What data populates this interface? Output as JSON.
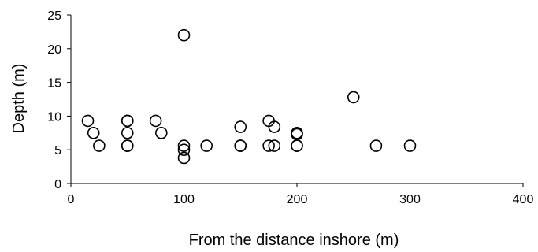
{
  "chart_data": {
    "type": "scatter",
    "title": "",
    "xlabel": "From the distance inshore (m)",
    "ylabel": "Depth (m)",
    "xlim": [
      0,
      400
    ],
    "ylim": [
      0,
      25
    ],
    "xticks": [
      0,
      100,
      200,
      300,
      400
    ],
    "yticks": [
      0,
      5,
      10,
      15,
      20,
      25
    ],
    "grid": false,
    "legend": "none",
    "marker": "open-circle",
    "marker_color": "#000000",
    "series": [
      {
        "points": [
          {
            "x": 15,
            "y": 9.3
          },
          {
            "x": 20,
            "y": 7.5
          },
          {
            "x": 25,
            "y": 5.6
          },
          {
            "x": 50,
            "y": 9.3
          },
          {
            "x": 50,
            "y": 9.3
          },
          {
            "x": 50,
            "y": 7.5
          },
          {
            "x": 50,
            "y": 5.6
          },
          {
            "x": 50,
            "y": 5.6
          },
          {
            "x": 75,
            "y": 9.3
          },
          {
            "x": 80,
            "y": 7.5
          },
          {
            "x": 100,
            "y": 22.0
          },
          {
            "x": 100,
            "y": 5.6
          },
          {
            "x": 100,
            "y": 5.0
          },
          {
            "x": 100,
            "y": 3.8
          },
          {
            "x": 120,
            "y": 5.6
          },
          {
            "x": 150,
            "y": 8.4
          },
          {
            "x": 150,
            "y": 5.6
          },
          {
            "x": 150,
            "y": 5.6
          },
          {
            "x": 175,
            "y": 9.3
          },
          {
            "x": 175,
            "y": 5.6
          },
          {
            "x": 180,
            "y": 8.4
          },
          {
            "x": 180,
            "y": 5.6
          },
          {
            "x": 200,
            "y": 7.5
          },
          {
            "x": 200,
            "y": 7.3
          },
          {
            "x": 200,
            "y": 5.6
          },
          {
            "x": 200,
            "y": 5.6
          },
          {
            "x": 250,
            "y": 12.8
          },
          {
            "x": 270,
            "y": 5.6
          },
          {
            "x": 300,
            "y": 5.6
          }
        ]
      }
    ]
  }
}
